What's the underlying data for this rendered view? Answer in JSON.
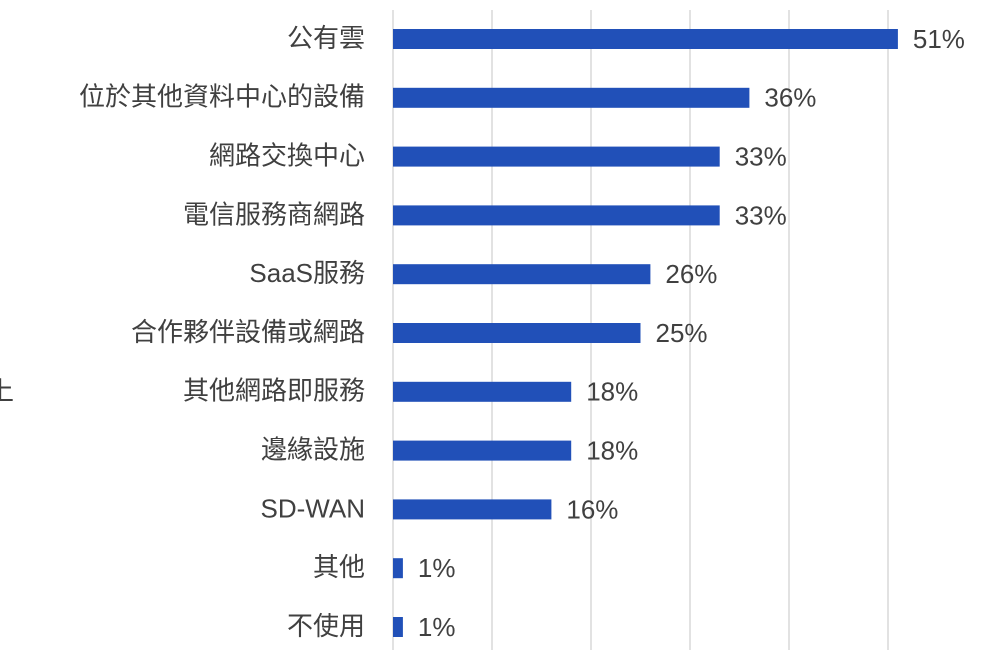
{
  "chart_data": {
    "type": "bar",
    "orientation": "horizontal",
    "annotation": "上",
    "categories": [
      "公有雲",
      "位於其他資料中心的設備",
      "網路交換中心",
      "電信服務商網路",
      "SaaS服務",
      "合作夥伴設備或網路",
      "其他網路即服務",
      "邊緣設施",
      "SD-WAN",
      "其他",
      "不使用"
    ],
    "values": [
      51,
      36,
      33,
      33,
      26,
      25,
      18,
      18,
      16,
      1,
      1
    ],
    "value_labels": [
      "51%",
      "36%",
      "33%",
      "33%",
      "26%",
      "25%",
      "18%",
      "18%",
      "16%",
      "1%",
      "1%"
    ],
    "color": "#2150b8",
    "xlim": [
      0,
      60
    ],
    "xticks": [
      0,
      10,
      20,
      30,
      40,
      50
    ],
    "grid": true
  }
}
